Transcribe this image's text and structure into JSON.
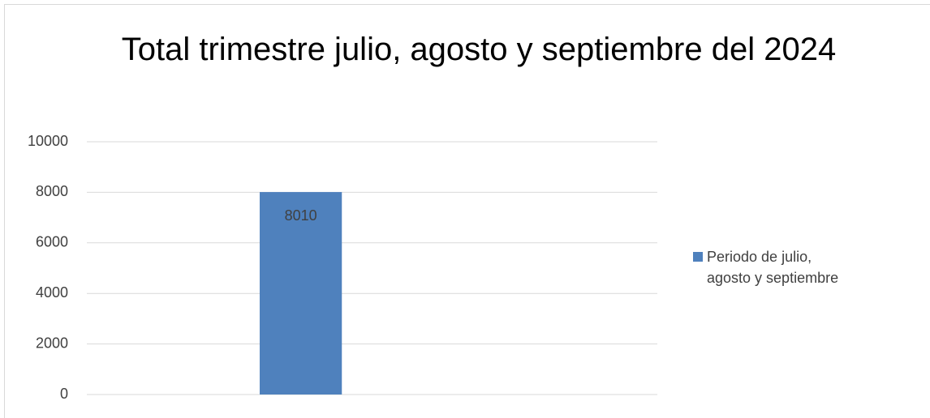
{
  "chart_data": {
    "type": "bar",
    "title": "Total trimestre julio, agosto y septiembre del 2024",
    "categories": [
      null
    ],
    "series": [
      {
        "name": "Periodo de julio, agosto y septiembre",
        "color": "#4f81bd",
        "values": [
          8010
        ]
      }
    ],
    "ylim": [
      0,
      10000
    ],
    "yticks": [
      0,
      2000,
      4000,
      6000,
      8000,
      10000
    ],
    "grid": true,
    "legend": "right",
    "data_labels": true
  }
}
